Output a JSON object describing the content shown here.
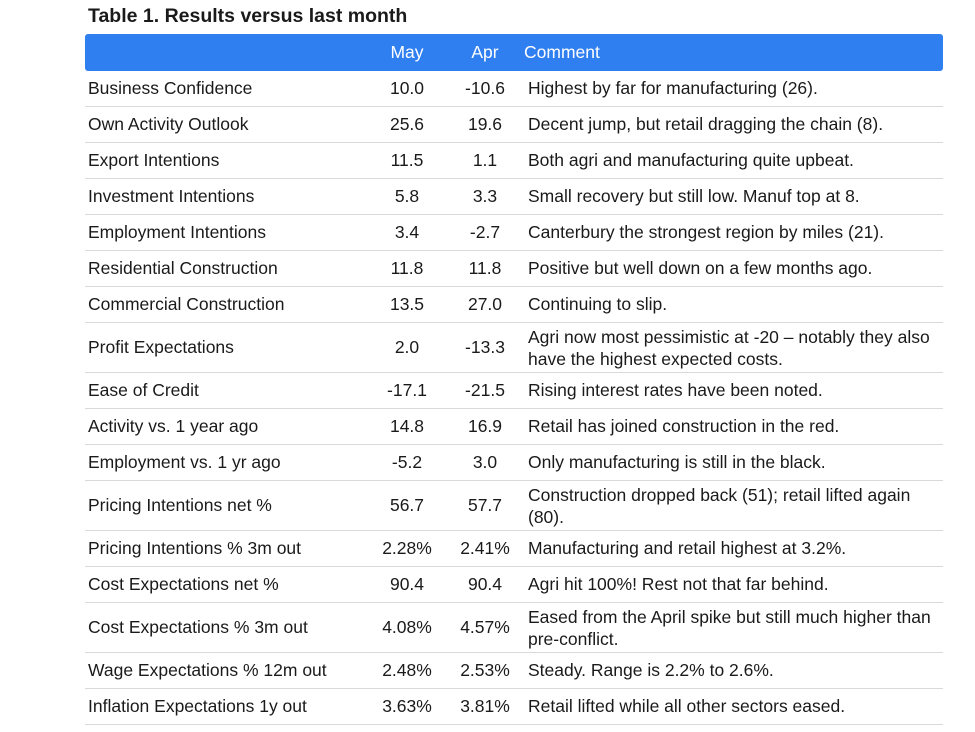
{
  "title": "Table 1. Results versus last month",
  "table": {
    "headers": {
      "label": "",
      "may": "May",
      "apr": "Apr",
      "comment": "Comment"
    },
    "rows": [
      {
        "label": "Business Confidence",
        "may": "10.0",
        "apr": "-10.6",
        "comment": "Highest by far for manufacturing (26)."
      },
      {
        "label": "Own Activity Outlook",
        "may": "25.6",
        "apr": "19.6",
        "comment": "Decent jump, but retail dragging the chain (8)."
      },
      {
        "label": "Export Intentions",
        "may": "11.5",
        "apr": "1.1",
        "comment": "Both agri and manufacturing quite upbeat."
      },
      {
        "label": "Investment Intentions",
        "may": "5.8",
        "apr": "3.3",
        "comment": "Small recovery but still low. Manuf top at 8."
      },
      {
        "label": "Employment Intentions",
        "may": "3.4",
        "apr": "-2.7",
        "comment": "Canterbury the strongest region by miles (21)."
      },
      {
        "label": "Residential Construction",
        "may": "11.8",
        "apr": "11.8",
        "comment": "Positive but well down on a few months ago."
      },
      {
        "label": "Commercial Construction",
        "may": "13.5",
        "apr": "27.0",
        "comment": "Continuing to slip."
      },
      {
        "label": "Profit Expectations",
        "may": "2.0",
        "apr": "-13.3",
        "comment": "Agri now most pessimistic at -20 – notably they also have the highest expected costs."
      },
      {
        "label": "Ease of Credit",
        "may": "-17.1",
        "apr": "-21.5",
        "comment": "Rising interest rates have been noted."
      },
      {
        "label": "Activity vs. 1 year ago",
        "may": "14.8",
        "apr": "16.9",
        "comment": "Retail has joined construction in the red."
      },
      {
        "label": "Employment vs. 1 yr ago",
        "may": "-5.2",
        "apr": "3.0",
        "comment": "Only manufacturing is still in the black."
      },
      {
        "label": "Pricing Intentions net %",
        "may": "56.7",
        "apr": "57.7",
        "comment": "Construction dropped back (51); retail lifted again (80)."
      },
      {
        "label": "Pricing Intentions % 3m out",
        "may": "2.28%",
        "apr": "2.41%",
        "comment": "Manufacturing and retail highest at 3.2%."
      },
      {
        "label": "Cost Expectations net %",
        "may": "90.4",
        "apr": "90.4",
        "comment": "Agri hit 100%! Rest not that far behind."
      },
      {
        "label": "Cost Expectations % 3m out",
        "may": "4.08%",
        "apr": "4.57%",
        "comment": "Eased from the April spike but still much higher than pre-conflict."
      },
      {
        "label": "Wage Expectations % 12m out",
        "may": "2.48%",
        "apr": "2.53%",
        "comment": "Steady. Range is 2.2% to 2.6%."
      },
      {
        "label": "Inflation Expectations 1y out",
        "may": "3.63%",
        "apr": "3.81%",
        "comment": "Retail lifted while all other sectors eased."
      }
    ]
  },
  "colors": {
    "header_bg": "#2f7ff0",
    "header_text": "#ffffff",
    "row_border": "#d9d9d9",
    "text": "#1a1a1a"
  }
}
